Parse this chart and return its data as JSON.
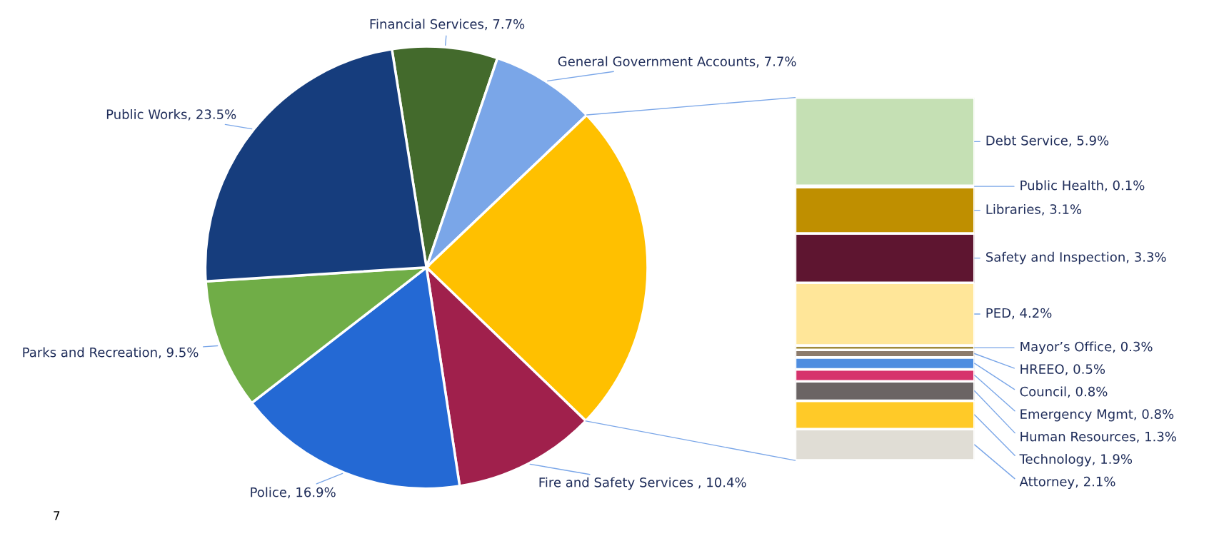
{
  "chart_data": [
    {
      "type": "pie",
      "categories": [
        "Financial Services",
        "General Government Accounts",
        null,
        "Fire and Safety Services ",
        "Police",
        "Parks and Recreation",
        "Public Works"
      ],
      "values": [
        7.7,
        7.7,
        24.3,
        10.4,
        16.9,
        9.5,
        23.5
      ],
      "colors": [
        "#436a2c",
        "#7aa6e8",
        "#ffc000",
        "#a0204c",
        "#2469d4",
        "#70ad47",
        "#163d7d"
      ],
      "value_labels": [
        "7.7%",
        "7.7%",
        null,
        "10.4%",
        "16.9%",
        "9.5%",
        "23.5%"
      ],
      "annotations": [
        "7"
      ]
    },
    {
      "type": "bar",
      "stacked": true,
      "categories": [
        null
      ],
      "tick_labels": false,
      "series": [
        {
          "color": "#e0ddd5",
          "values": [
            2.1
          ],
          "value_labels": [
            "Attorney, 2.1%"
          ]
        },
        {
          "color": "#ffca28",
          "values": [
            1.9
          ],
          "value_labels": [
            "Technology, 1.9%"
          ]
        },
        {
          "color": "#6b6464",
          "values": [
            1.3
          ],
          "value_labels": [
            "Human Resources, 1.3%"
          ]
        },
        {
          "color": "#d6336c",
          "values": [
            0.8
          ],
          "value_labels": [
            "Emergency Mgmt, 0.8%"
          ]
        },
        {
          "color": "#4f8de0",
          "values": [
            0.8
          ],
          "value_labels": [
            "Council, 0.8%"
          ]
        },
        {
          "color": "#8c7b6b",
          "values": [
            0.5
          ],
          "value_labels": [
            "HREEO, 0.5%"
          ]
        },
        {
          "color": "#a08a3a",
          "values": [
            0.3
          ],
          "value_labels": [
            "Mayor’s Office, 0.3%"
          ]
        },
        {
          "color": "#ffe699",
          "values": [
            4.2
          ],
          "value_labels": [
            "PED, 4.2%"
          ]
        },
        {
          "color": "#5e1530",
          "values": [
            3.3
          ],
          "value_labels": [
            "Safety and Inspection, 3.3%"
          ]
        },
        {
          "color": "#bf8f00",
          "values": [
            3.1
          ],
          "value_labels": [
            "Libraries, 3.1%"
          ]
        },
        {
          "color": "#d9d9d9",
          "values": [
            0.1
          ],
          "value_labels": [
            "Public Health, 0.1%"
          ]
        },
        {
          "color": "#c5e0b4",
          "values": [
            5.9
          ],
          "value_labels": [
            "Debt Service, 5.9%"
          ]
        }
      ]
    }
  ]
}
